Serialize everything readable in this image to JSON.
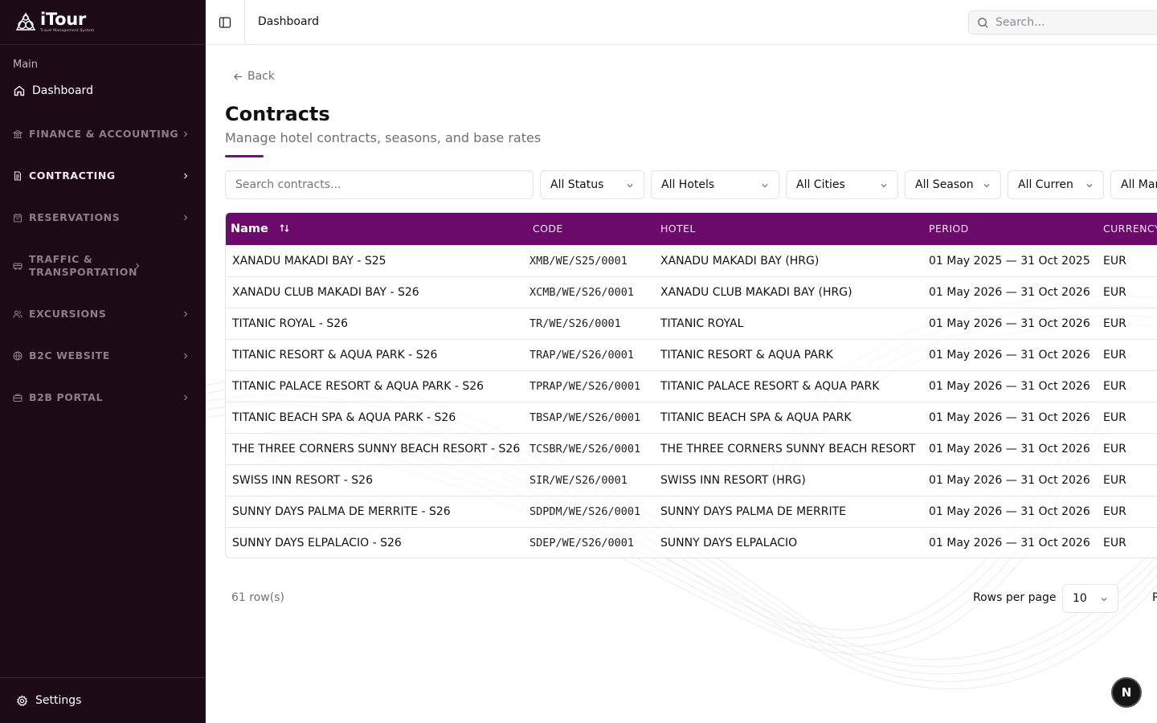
{
  "brand": {
    "name": "iTour",
    "tagline": "Travel Management System"
  },
  "sidebar": {
    "section_label": "Main",
    "dashboard_label": "Dashboard",
    "groups": [
      {
        "label": "FINANCE & ACCOUNTING",
        "icon": "bank-icon"
      },
      {
        "label": "CONTRACTING",
        "icon": "file-text-icon",
        "active": true
      },
      {
        "label": "RESERVATIONS",
        "icon": "calendar-icon"
      },
      {
        "label": "TRAFFIC & TRANSPORTATION",
        "icon": "bus-icon"
      },
      {
        "label": "EXCURSIONS",
        "icon": "users-icon"
      },
      {
        "label": "B2C WEBSITE",
        "icon": "globe-icon"
      },
      {
        "label": "B2B PORTAL",
        "icon": "briefcase-icon"
      }
    ],
    "settings_label": "Settings"
  },
  "topbar": {
    "breadcrumb": "Dashboard",
    "search_placeholder": "Search..."
  },
  "page": {
    "back_label": "Back",
    "title": "Contracts",
    "subtitle": "Manage hotel contracts, seasons, and base rates"
  },
  "filters": {
    "search_placeholder": "Search contracts...",
    "status": "All Status",
    "hotels": "All Hotels",
    "cities": "All Cities",
    "season": "All Season",
    "currency": "All Curren",
    "market": "All Mar"
  },
  "table": {
    "headers": {
      "name": "Name",
      "code": "CODE",
      "hotel": "HOTEL",
      "period": "PERIOD",
      "currency": "CURRENCY"
    },
    "rows": [
      {
        "name": "XANADU MAKADI BAY - S25",
        "code": "XMB/WE/S25/0001",
        "hotel": "XANADU MAKADI BAY (HRG)",
        "period": "01 May 2025 — 31 Oct 2025",
        "currency": "EUR"
      },
      {
        "name": "XANADU CLUB MAKADI BAY - S26",
        "code": "XCMB/WE/S26/0001",
        "hotel": "XANADU CLUB MAKADI BAY (HRG)",
        "period": "01 May 2026 — 31 Oct 2026",
        "currency": "EUR"
      },
      {
        "name": "TITANIC ROYAL - S26",
        "code": "TR/WE/S26/0001",
        "hotel": "TITANIC ROYAL",
        "period": "01 May 2026 — 31 Oct 2026",
        "currency": "EUR"
      },
      {
        "name": "TITANIC RESORT & AQUA PARK - S26",
        "code": "TRAP/WE/S26/0001",
        "hotel": "TITANIC RESORT & AQUA PARK",
        "period": "01 May 2026 — 31 Oct 2026",
        "currency": "EUR"
      },
      {
        "name": "TITANIC PALACE RESORT & AQUA PARK - S26",
        "code": "TPRAP/WE/S26/0001",
        "hotel": "TITANIC PALACE RESORT & AQUA PARK",
        "period": "01 May 2026 — 31 Oct 2026",
        "currency": "EUR"
      },
      {
        "name": "TITANIC BEACH SPA & AQUA PARK - S26",
        "code": "TBSAP/WE/S26/0001",
        "hotel": "TITANIC BEACH SPA & AQUA PARK",
        "period": "01 May 2026 — 31 Oct 2026",
        "currency": "EUR"
      },
      {
        "name": "THE THREE CORNERS SUNNY BEACH RESORT - S26",
        "code": "TCSBR/WE/S26/0001",
        "hotel": "THE THREE CORNERS SUNNY BEACH RESORT",
        "period": "01 May 2026 — 31 Oct 2026",
        "currency": "EUR"
      },
      {
        "name": "SWISS INN RESORT - S26",
        "code": "SIR/WE/S26/0001",
        "hotel": "SWISS INN RESORT (HRG)",
        "period": "01 May 2026 — 31 Oct 2026",
        "currency": "EUR"
      },
      {
        "name": "SUNNY DAYS PALMA DE MERRITE - S26",
        "code": "SDPDM/WE/S26/0001",
        "hotel": "SUNNY DAYS PALMA DE MERRITE",
        "period": "01 May 2026 — 31 Oct 2026",
        "currency": "EUR"
      },
      {
        "name": "SUNNY DAYS ELPALACIO - S26",
        "code": "SDEP/WE/S26/0001",
        "hotel": "SUNNY DAYS ELPALACIO",
        "period": "01 May 2026 — 31 Oct 2026",
        "currency": "EUR"
      }
    ]
  },
  "footer": {
    "row_count": "61 row(s)",
    "rows_per_page_label": "Rows per page",
    "rows_per_page_value": "10",
    "page_label_cut": "P"
  },
  "dev_badge": "N",
  "colors": {
    "sidebar_bg": "#1c0a17",
    "accent": "#6b0a6b"
  }
}
